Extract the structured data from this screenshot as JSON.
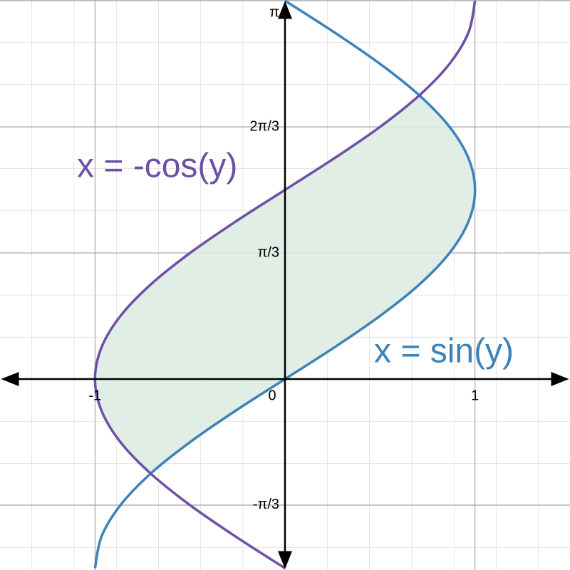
{
  "chart_data": {
    "type": "line",
    "xlim": [
      -1.5,
      1.5
    ],
    "ylim": [
      -1.586,
      3.148
    ],
    "xticks": [
      -1,
      0,
      1
    ],
    "yticks": [
      {
        "value": -1.047,
        "label": "-π/3"
      },
      {
        "value": 1.047,
        "label": "π/3"
      },
      {
        "value": 2.094,
        "label": "2π/3"
      },
      {
        "value": 3.142,
        "label": "π"
      }
    ],
    "grid": true,
    "fill_color": "#dcebe0",
    "series": [
      {
        "name": "x = sin(y)",
        "color": "#3d82b8",
        "x": [
          -1,
          -0.966,
          -0.866,
          -0.707,
          -0.5,
          -0.259,
          0,
          0.259,
          0.5,
          0.707,
          0.866,
          0.966,
          1,
          0.966,
          0.866,
          0.707,
          0.5,
          0.259,
          0
        ],
        "y": [
          -1.571,
          -1.309,
          -1.047,
          -0.785,
          -0.524,
          -0.262,
          0,
          0.262,
          0.524,
          0.785,
          1.047,
          1.309,
          1.571,
          1.833,
          2.094,
          2.356,
          2.618,
          2.88,
          3.142
        ]
      },
      {
        "name": "x = -cos(y)",
        "color": "#6e4fa6",
        "x": [
          0,
          -0.259,
          -0.5,
          -0.707,
          -0.866,
          -0.966,
          -1,
          -0.966,
          -0.866,
          -0.707,
          -0.5,
          -0.259,
          0,
          0.259,
          0.5,
          0.707,
          0.866,
          0.966,
          1
        ],
        "y": [
          -1.571,
          -1.309,
          -1.047,
          -0.785,
          -0.524,
          -0.262,
          0,
          0.262,
          0.524,
          0.785,
          1.047,
          1.309,
          1.571,
          1.833,
          2.094,
          2.356,
          2.618,
          2.88,
          3.142
        ]
      }
    ]
  }
}
